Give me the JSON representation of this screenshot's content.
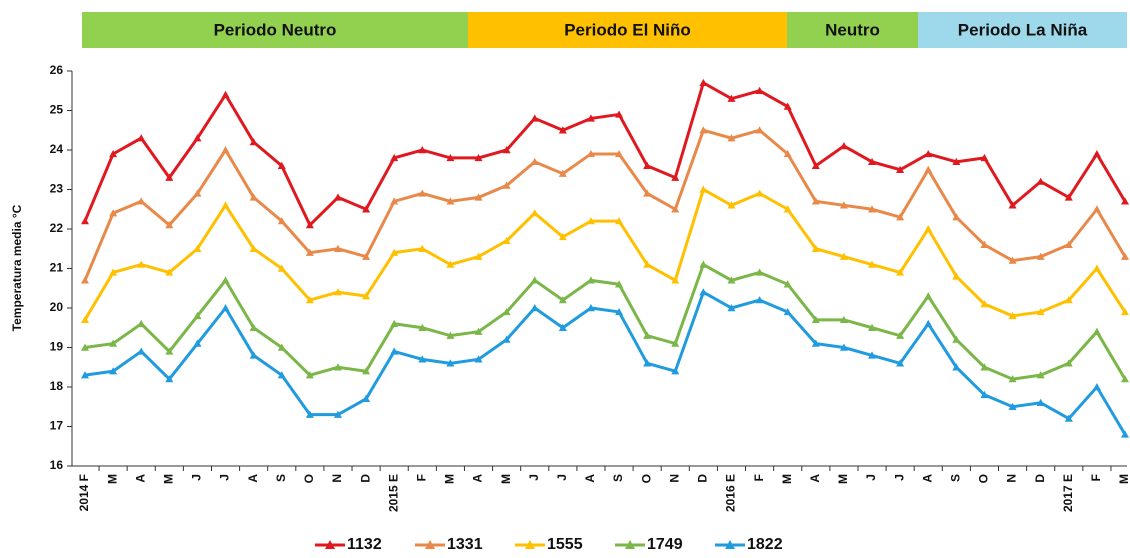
{
  "chart_data": {
    "type": "line",
    "ylabel": "Temperatura media °C",
    "periods": [
      {
        "label": "Periodo Neutro",
        "color": "#92d050"
      },
      {
        "label": "Periodo El Niño",
        "color": "#ffc000"
      },
      {
        "label": "Neutro",
        "color": "#92d050"
      },
      {
        "label": "Periodo La Niña",
        "color": "#9dd9ea"
      }
    ],
    "categories": [
      "2014 F",
      "M",
      "A",
      "M",
      "J",
      "J",
      "A",
      "S",
      "O",
      "N",
      "D",
      "2015 E",
      "F",
      "M",
      "A",
      "M",
      "J",
      "J",
      "A",
      "S",
      "O",
      "N",
      "D",
      "2016 E",
      "F",
      "M",
      "A",
      "M",
      "J",
      "J",
      "A",
      "S",
      "O",
      "N",
      "D",
      "2017 E",
      "F",
      "M"
    ],
    "series": [
      {
        "name": "1132",
        "color": "#e0181f",
        "values": [
          22.2,
          23.9,
          24.3,
          23.3,
          24.3,
          25.4,
          24.2,
          23.6,
          22.1,
          22.8,
          22.5,
          23.8,
          24.0,
          23.8,
          23.8,
          24.0,
          24.8,
          24.5,
          24.8,
          24.9,
          23.6,
          23.3,
          25.7,
          25.3,
          25.5,
          25.1,
          23.6,
          24.1,
          23.7,
          23.5,
          23.9,
          23.7,
          23.8,
          22.6,
          23.2,
          22.8,
          23.9,
          22.7
        ]
      },
      {
        "name": "1331",
        "color": "#e8894a",
        "values": [
          20.7,
          22.4,
          22.7,
          22.1,
          22.9,
          24.0,
          22.8,
          22.2,
          21.4,
          21.5,
          21.3,
          22.7,
          22.9,
          22.7,
          22.8,
          23.1,
          23.7,
          23.4,
          23.9,
          23.9,
          22.9,
          22.5,
          24.5,
          24.3,
          24.5,
          23.9,
          22.7,
          22.6,
          22.5,
          22.3,
          23.5,
          22.3,
          21.6,
          21.2,
          21.3,
          21.6,
          22.5,
          21.3
        ]
      },
      {
        "name": "1555",
        "color": "#ffc000",
        "values": [
          19.7,
          20.9,
          21.1,
          20.9,
          21.5,
          22.6,
          21.5,
          21.0,
          20.2,
          20.4,
          20.3,
          21.4,
          21.5,
          21.1,
          21.3,
          21.7,
          22.4,
          21.8,
          22.2,
          22.2,
          21.1,
          20.7,
          23.0,
          22.6,
          22.9,
          22.5,
          21.5,
          21.3,
          21.1,
          20.9,
          22.0,
          20.8,
          20.1,
          19.8,
          19.9,
          20.2,
          21.0,
          19.9
        ]
      },
      {
        "name": "1749",
        "color": "#7ab648",
        "values": [
          19.0,
          19.1,
          19.6,
          18.9,
          19.8,
          20.7,
          19.5,
          19.0,
          18.3,
          18.5,
          18.4,
          19.6,
          19.5,
          19.3,
          19.4,
          19.9,
          20.7,
          20.2,
          20.7,
          20.6,
          19.3,
          19.1,
          21.1,
          20.7,
          20.9,
          20.6,
          19.7,
          19.7,
          19.5,
          19.3,
          20.3,
          19.2,
          18.5,
          18.2,
          18.3,
          18.6,
          19.4,
          18.2
        ]
      },
      {
        "name": "1822",
        "color": "#1f9bde",
        "values": [
          18.3,
          18.4,
          18.9,
          18.2,
          19.1,
          20.0,
          18.8,
          18.3,
          17.3,
          17.3,
          17.7,
          18.9,
          18.7,
          18.6,
          18.7,
          19.2,
          20.0,
          19.5,
          20.0,
          19.9,
          18.6,
          18.4,
          20.4,
          20.0,
          20.2,
          19.9,
          19.1,
          19.0,
          18.8,
          18.6,
          19.6,
          18.5,
          17.8,
          17.5,
          17.6,
          17.2,
          18.0,
          16.8
        ]
      }
    ],
    "ylim": [
      16,
      26
    ],
    "yticks": [
      16,
      17,
      18,
      19,
      20,
      21,
      22,
      23,
      24,
      25,
      26
    ],
    "grid": false,
    "legend": "bottom"
  }
}
